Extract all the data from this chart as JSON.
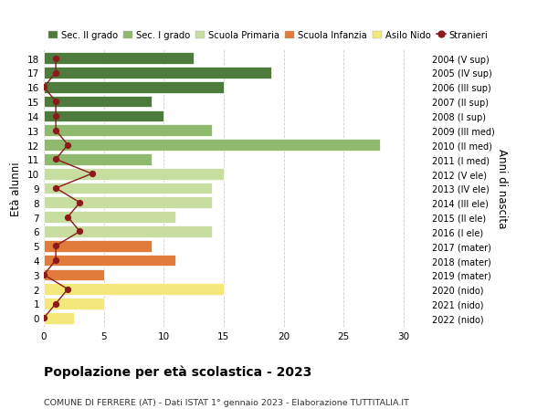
{
  "ages": [
    0,
    1,
    2,
    3,
    4,
    5,
    6,
    7,
    8,
    9,
    10,
    11,
    12,
    13,
    14,
    15,
    16,
    17,
    18
  ],
  "right_labels": [
    "2022 (nido)",
    "2021 (nido)",
    "2020 (nido)",
    "2019 (mater)",
    "2018 (mater)",
    "2017 (mater)",
    "2016 (I ele)",
    "2015 (II ele)",
    "2014 (III ele)",
    "2013 (IV ele)",
    "2012 (V ele)",
    "2011 (I med)",
    "2010 (II med)",
    "2009 (III med)",
    "2008 (I sup)",
    "2007 (II sup)",
    "2006 (III sup)",
    "2005 (IV sup)",
    "2004 (V sup)"
  ],
  "bar_values": [
    2.5,
    5,
    15,
    5,
    11,
    9,
    14,
    11,
    14,
    14,
    15,
    9,
    28,
    14,
    10,
    9,
    15,
    19,
    12.5
  ],
  "bar_colors": [
    "#f5e87a",
    "#f5e87a",
    "#f5e87a",
    "#e07b39",
    "#e07b39",
    "#e07b39",
    "#c8dda0",
    "#c8dda0",
    "#c8dda0",
    "#c8dda0",
    "#c8dda0",
    "#8fba6e",
    "#8fba6e",
    "#8fba6e",
    "#4e7a3c",
    "#4e7a3c",
    "#4e7a3c",
    "#4e7a3c",
    "#4e7a3c"
  ],
  "stranieri_values": [
    0,
    1,
    2,
    0,
    1,
    1,
    3,
    2,
    3,
    1,
    4,
    1,
    2,
    1,
    1,
    1,
    0,
    1,
    1
  ],
  "title": "Popolazione per età scolastica - 2023",
  "subtitle": "COMUNE DI FERRERE (AT) - Dati ISTAT 1° gennaio 2023 - Elaborazione TUTTITALIA.IT",
  "ylabel": "Età alunni",
  "right_ylabel": "Anni di nascita",
  "xlim": [
    0,
    32
  ],
  "xticks": [
    0,
    5,
    10,
    15,
    20,
    25,
    30
  ],
  "legend_items": [
    {
      "label": "Sec. II grado",
      "color": "#4e7a3c"
    },
    {
      "label": "Sec. I grado",
      "color": "#8fba6e"
    },
    {
      "label": "Scuola Primaria",
      "color": "#c8dda0"
    },
    {
      "label": "Scuola Infanzia",
      "color": "#e07b39"
    },
    {
      "label": "Asilo Nido",
      "color": "#f5e87a"
    },
    {
      "label": "Stranieri",
      "color": "#8b1a1a"
    }
  ],
  "background_color": "#ffffff",
  "grid_color": "#cccccc"
}
